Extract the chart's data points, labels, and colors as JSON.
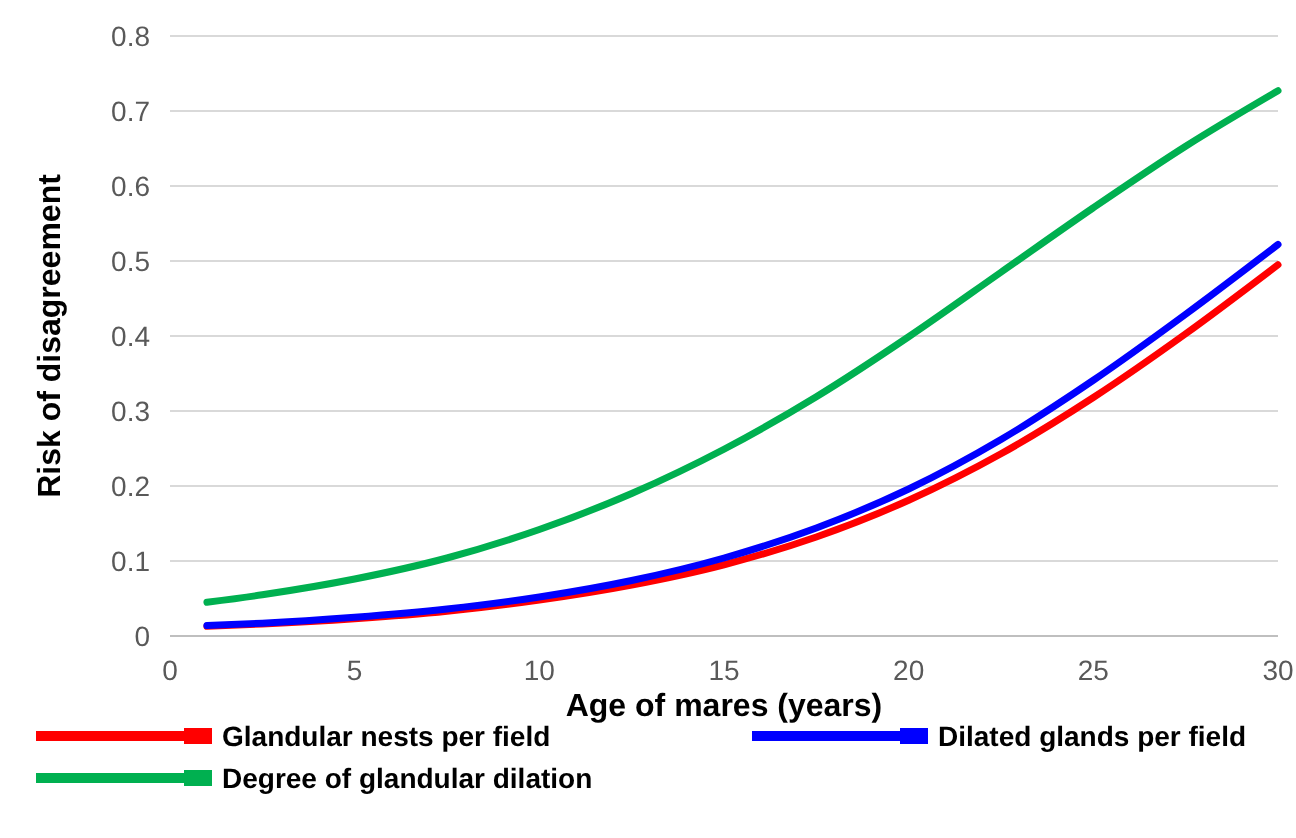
{
  "chart_data": {
    "type": "line",
    "xlabel": "Age of mares (years)",
    "ylabel": "Risk of disagreement",
    "x": [
      1,
      2.5,
      5,
      7.5,
      10,
      12.5,
      15,
      17.5,
      20,
      22.5,
      25,
      27.5,
      30
    ],
    "series": [
      {
        "name": "Glandular nests per field",
        "color": "#ff0000",
        "values": [
          0.013,
          0.016,
          0.023,
          0.033,
          0.048,
          0.068,
          0.095,
          0.132,
          0.181,
          0.243,
          0.318,
          0.403,
          0.495
        ]
      },
      {
        "name": "Dilated glands per field",
        "color": "#0000ff",
        "values": [
          0.014,
          0.017,
          0.025,
          0.036,
          0.052,
          0.074,
          0.104,
          0.144,
          0.196,
          0.262,
          0.341,
          0.429,
          0.522
        ]
      },
      {
        "name": "Degree of glandular dilation",
        "color": "#00b050",
        "values": [
          0.045,
          0.055,
          0.076,
          0.104,
          0.142,
          0.19,
          0.249,
          0.319,
          0.399,
          0.485,
          0.571,
          0.653,
          0.727
        ]
      }
    ],
    "xlim": [
      0,
      30
    ],
    "xticks": [
      0,
      5,
      10,
      15,
      20,
      25,
      30
    ],
    "ylim": [
      0,
      0.8
    ],
    "yticks": [
      0,
      0.1,
      0.2,
      0.3,
      0.4,
      0.5,
      0.6,
      0.7,
      0.8
    ],
    "grid": "y",
    "legend": "bottom",
    "marker": "none",
    "line_style": "solid"
  }
}
